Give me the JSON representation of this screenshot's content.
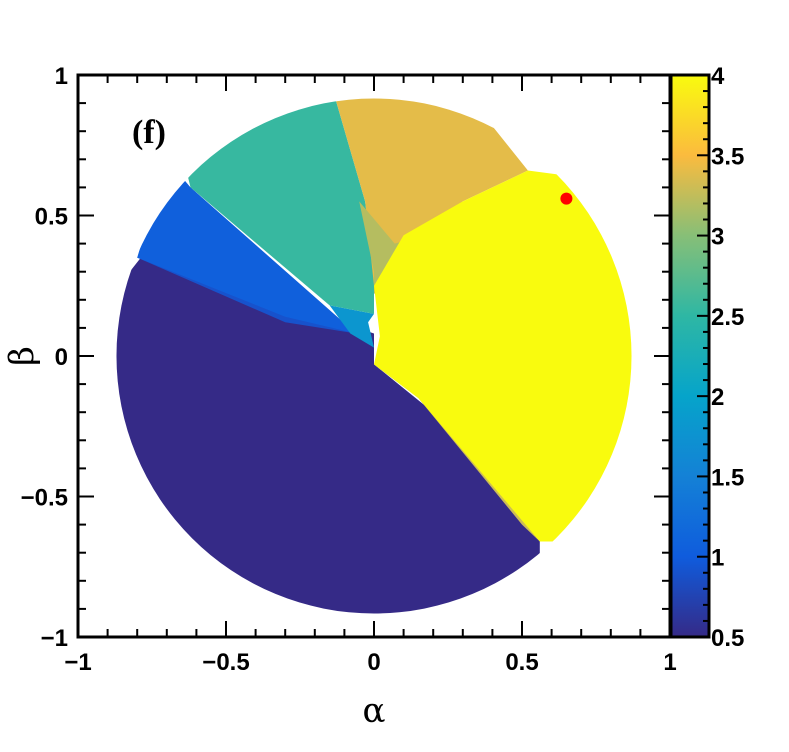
{
  "chart_data": {
    "type": "heatmap",
    "panel_label": "(f)",
    "xlabel": "α",
    "ylabel": "β",
    "xlim": [
      -1,
      1
    ],
    "ylim": [
      -1,
      1
    ],
    "x_ticks": [
      {
        "value": -1,
        "label": "−1"
      },
      {
        "value": -0.5,
        "label": "−0.5"
      },
      {
        "value": 0,
        "label": "0"
      },
      {
        "value": 0.5,
        "label": "0.5"
      },
      {
        "value": 1,
        "label": "1"
      }
    ],
    "y_ticks": [
      {
        "value": -1,
        "label": "−1"
      },
      {
        "value": -0.5,
        "label": "−0.5"
      },
      {
        "value": 0,
        "label": "0"
      },
      {
        "value": 0.5,
        "label": "0.5"
      },
      {
        "value": 1,
        "label": "1"
      }
    ],
    "colorbar": {
      "range": [
        0.5,
        4
      ],
      "ticks": [
        {
          "value": 0.5,
          "label": "0.5"
        },
        {
          "value": 1,
          "label": "1"
        },
        {
          "value": 1.5,
          "label": "1.5"
        },
        {
          "value": 2,
          "label": "2"
        },
        {
          "value": 2.5,
          "label": "2.5"
        },
        {
          "value": 3,
          "label": "3"
        },
        {
          "value": 3.5,
          "label": "3.5"
        },
        {
          "value": 4,
          "label": "4"
        }
      ],
      "stops": [
        {
          "value": 0.5,
          "color": "#352a87"
        },
        {
          "value": 1.0,
          "color": "#0f5cdd"
        },
        {
          "value": 1.5,
          "color": "#1481d6"
        },
        {
          "value": 2.0,
          "color": "#06a4ca"
        },
        {
          "value": 2.5,
          "color": "#2eb7a4"
        },
        {
          "value": 3.0,
          "color": "#87bf77"
        },
        {
          "value": 3.5,
          "color": "#fbbb3e"
        },
        {
          "value": 4.0,
          "color": "#f9fb0e"
        }
      ]
    },
    "domain_radius": 0.87,
    "regions": [
      {
        "value": 0.5,
        "polygon": [
          [
            0,
            0.08
          ],
          [
            -0.78,
            0.36
          ],
          [
            -0.9,
            0.2
          ],
          [
            -0.9,
            -0.95
          ],
          [
            0.56,
            -0.95
          ],
          [
            0.56,
            -0.66
          ],
          [
            0.2,
            -0.2
          ],
          [
            0,
            -0.03
          ]
        ]
      },
      {
        "value": 0.9,
        "polygon": [
          [
            -0.06,
            0.08
          ],
          [
            -0.3,
            0.12
          ],
          [
            -0.8,
            0.35
          ],
          [
            -0.62,
            0.6
          ],
          [
            -0.2,
            0.2
          ],
          [
            -0.06,
            0.08
          ]
        ]
      },
      {
        "value": 1.05,
        "polygon": [
          [
            -0.06,
            0.08
          ],
          [
            -0.62,
            0.6
          ],
          [
            -0.7,
            0.7
          ],
          [
            -0.8,
            0.35
          ],
          [
            -0.3,
            0.14
          ]
        ]
      },
      {
        "value": 1.8,
        "polygon": [
          [
            0,
            0.15
          ],
          [
            -0.15,
            0.18
          ],
          [
            -0.08,
            0.08
          ],
          [
            0,
            0.03
          ],
          [
            -0.02,
            0.12
          ]
        ]
      },
      {
        "value": 2.55,
        "polygon": [
          [
            0,
            0.15
          ],
          [
            -0.15,
            0.18
          ],
          [
            -0.62,
            0.6
          ],
          [
            -0.7,
            0.95
          ],
          [
            -0.2,
            0.95
          ],
          [
            -0.14,
            0.95
          ],
          [
            -0.03,
            0.55
          ],
          [
            0.0,
            0.3
          ]
        ]
      },
      {
        "value": 3.4,
        "polygon": [
          [
            0.0,
            0.25
          ],
          [
            -0.03,
            0.55
          ],
          [
            -0.14,
            0.95
          ],
          [
            0.3,
            0.95
          ],
          [
            0.52,
            0.66
          ],
          [
            0.3,
            0.55
          ],
          [
            0.15,
            0.42
          ]
        ]
      },
      {
        "value": 3.2,
        "polygon": [
          [
            0,
            0.22
          ],
          [
            0.14,
            0.42
          ],
          [
            0.07,
            0.4
          ],
          [
            -0.05,
            0.55
          ],
          [
            0,
            0.3
          ]
        ]
      },
      {
        "value": 3.3,
        "polygon": [
          [
            0.03,
            0.05
          ],
          [
            0.2,
            -0.2
          ],
          [
            0.56,
            -0.66
          ],
          [
            0.5,
            -0.6
          ],
          [
            0.15,
            -0.15
          ],
          [
            0,
            -0.03
          ]
        ]
      },
      {
        "value": 4.0,
        "polygon": [
          [
            0,
            -0.03
          ],
          [
            0.15,
            -0.15
          ],
          [
            0.56,
            -0.66
          ],
          [
            0.95,
            -0.66
          ],
          [
            0.95,
            0.6
          ],
          [
            0.52,
            0.66
          ],
          [
            0.3,
            0.55
          ],
          [
            0.1,
            0.43
          ],
          [
            0,
            0.25
          ],
          [
            0.02,
            0.07
          ]
        ]
      }
    ],
    "marker": {
      "x": 0.65,
      "y": 0.56,
      "color": "#ff0000"
    }
  }
}
